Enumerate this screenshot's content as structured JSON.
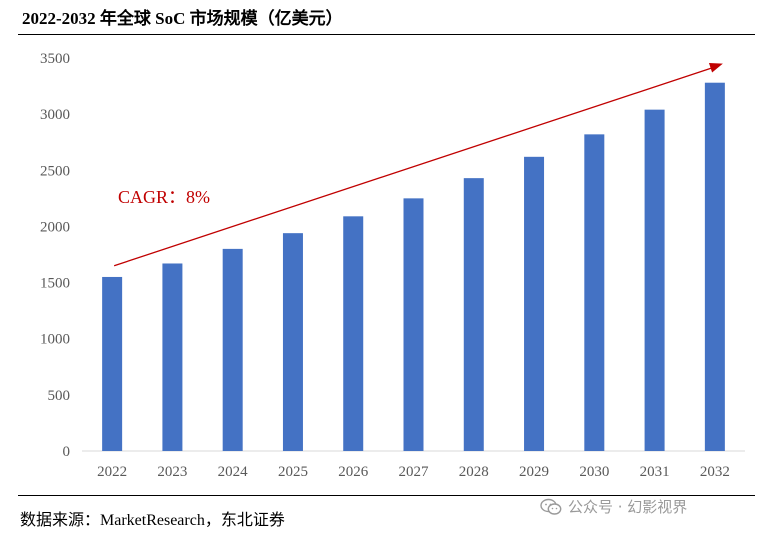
{
  "title": "2022-2032 年全球 SoC 市场规模（亿美元）",
  "source": "数据来源：MarketResearch，东北证券",
  "watermark": "公众号 · 幻影视界",
  "colors": {
    "bar": "#4472c4",
    "trend": "#c00000",
    "axis": "#d9d9d9",
    "tick_text": "#595959"
  },
  "chart_data": {
    "type": "bar",
    "title": "2022-2032 年全球 SoC 市场规模（亿美元）",
    "xlabel": "",
    "ylabel": "",
    "categories": [
      "2022",
      "2023",
      "2024",
      "2025",
      "2026",
      "2027",
      "2028",
      "2029",
      "2030",
      "2031",
      "2032"
    ],
    "values": [
      1550,
      1670,
      1800,
      1940,
      2090,
      2250,
      2430,
      2620,
      2820,
      3040,
      3280
    ],
    "ylim": [
      0,
      3500
    ],
    "yticks": [
      0,
      500,
      1000,
      1500,
      2000,
      2500,
      3000,
      3500
    ],
    "yticklabels": [
      "0",
      "500",
      "1000",
      "1500",
      "2000",
      "2500",
      "3000",
      "3500"
    ],
    "grid": false,
    "annotations": [
      {
        "text": "CAGR：8%",
        "type": "trend-arrow",
        "from": [
          "2022",
          1650
        ],
        "to": [
          "2032",
          3450
        ]
      }
    ]
  }
}
